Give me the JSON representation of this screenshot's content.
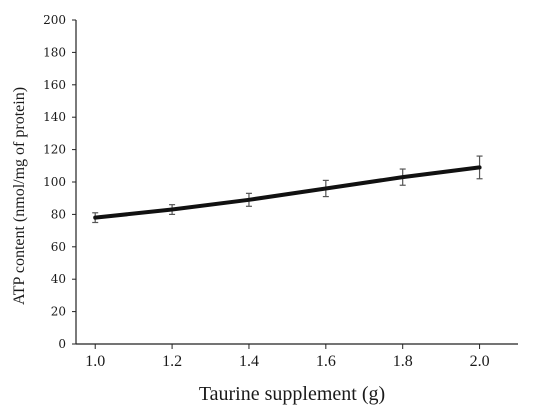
{
  "chart_data": {
    "type": "line",
    "title": "",
    "xlabel": "Taurine supplement (g)",
    "ylabel": "ATP content  (nmol/mg  of protein)",
    "x": [
      1.0,
      1.2,
      1.4,
      1.6,
      1.8,
      2.0
    ],
    "x_tick_labels": [
      "1.0",
      "1.2",
      "1.4",
      "1.6",
      "1.8",
      "2.0"
    ],
    "xlim": [
      0.95,
      2.1
    ],
    "ylim": [
      0,
      200
    ],
    "y_ticks": [
      0,
      20,
      40,
      60,
      80,
      100,
      120,
      140,
      160,
      180,
      200
    ],
    "series": [
      {
        "values": [
          78,
          83,
          89,
          96,
          103,
          109
        ],
        "error": [
          3,
          3,
          4,
          5,
          5,
          7
        ]
      }
    ],
    "grid": false,
    "legend": "none",
    "line_color": "#111111"
  }
}
